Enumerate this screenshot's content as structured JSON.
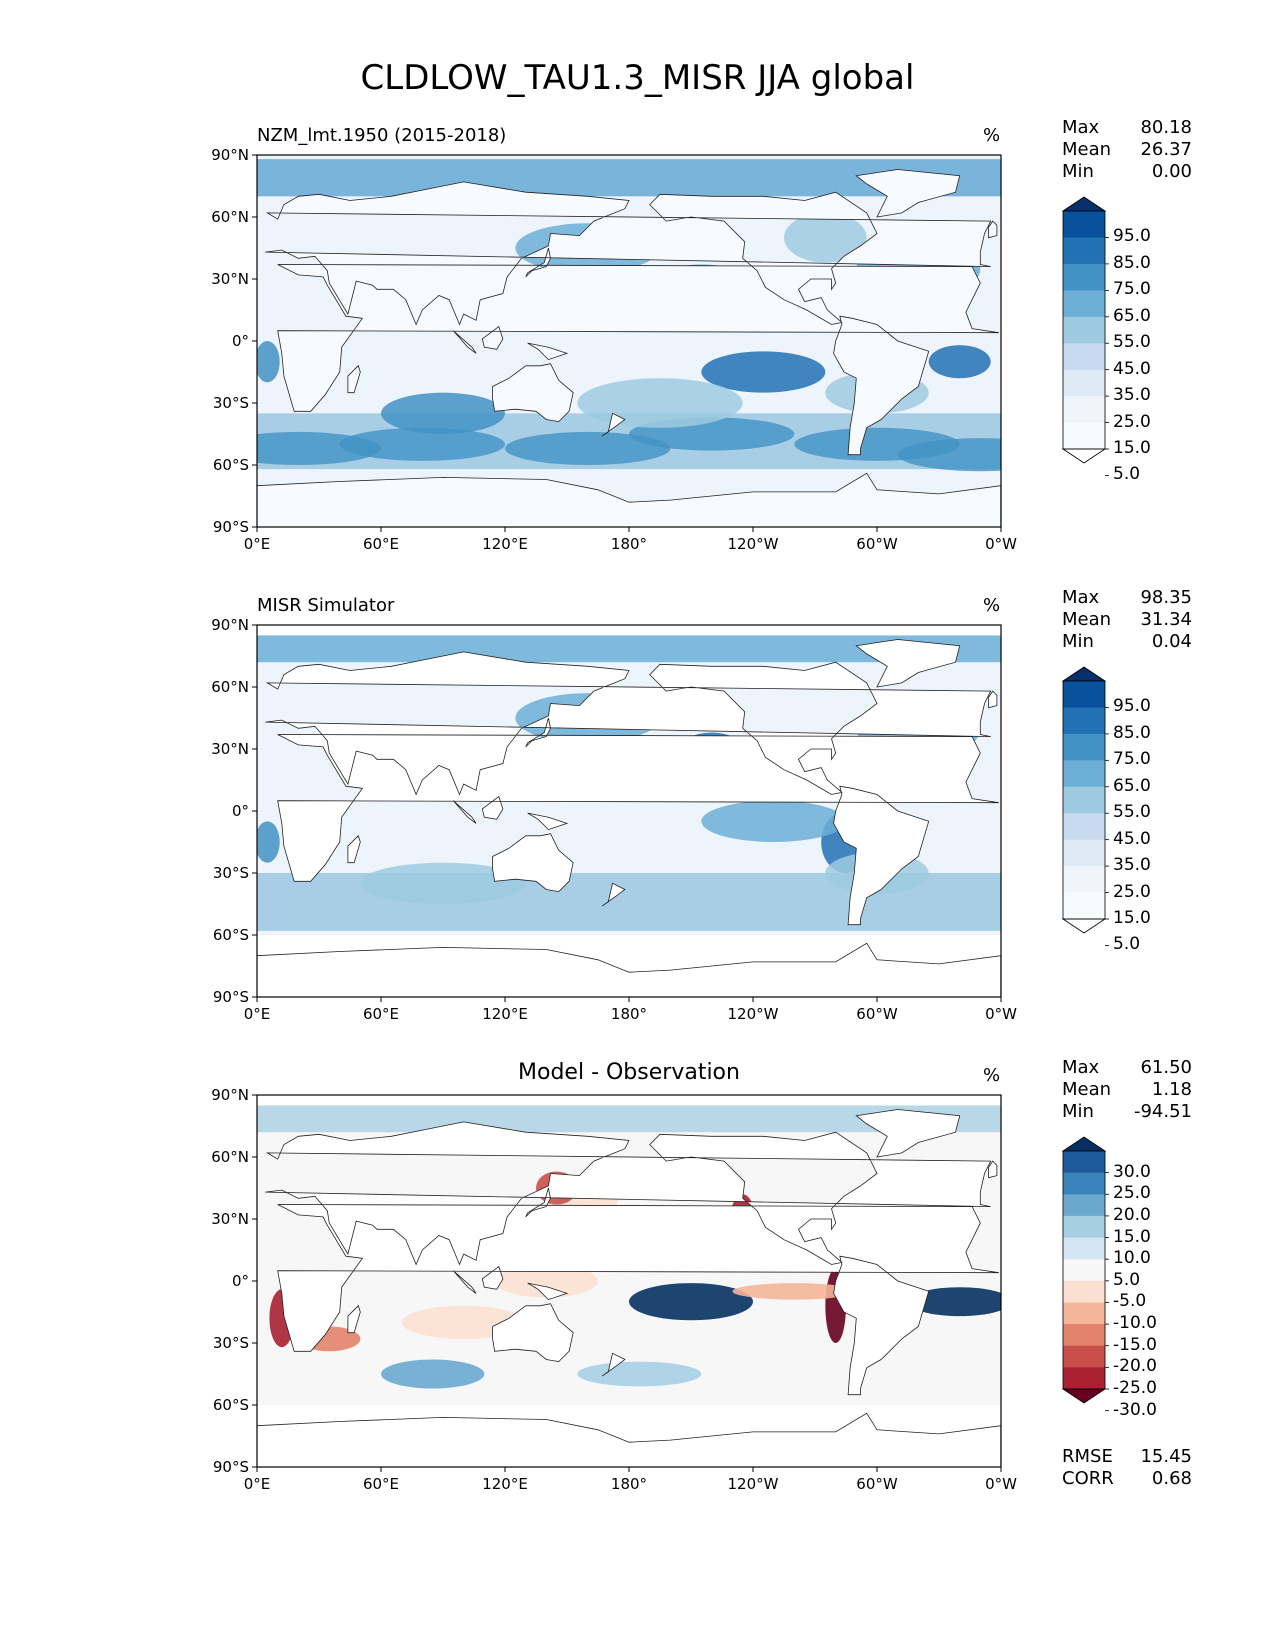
{
  "figure_title": "CLDLOW_TAU1.3_MISR JJA global",
  "panels": [
    {
      "title_left": "NZM_lmt.1950 (2015-2018)",
      "title_center": "",
      "unit": "%",
      "stats": [
        {
          "label": "Max",
          "value": "80.18"
        },
        {
          "label": "Mean",
          "value": "26.37"
        },
        {
          "label": "Min",
          "value": "0.00"
        }
      ],
      "colorbar": {
        "scheme": "blues",
        "labels": [
          "95.0",
          "85.0",
          "75.0",
          "65.0",
          "55.0",
          "45.0",
          "35.0",
          "25.0",
          "15.0",
          "5.0"
        ],
        "colors": [
          "#08306b",
          "#08519c",
          "#2171b5",
          "#4292c6",
          "#6baed6",
          "#9ecae1",
          "#c6dbef",
          "#deebf7",
          "#eff5fb",
          "#f7fbff",
          "#ffffff"
        ]
      }
    },
    {
      "title_left": "MISR Simulator",
      "title_center": "",
      "unit": "%",
      "stats": [
        {
          "label": "Max",
          "value": "98.35"
        },
        {
          "label": "Mean",
          "value": "31.34"
        },
        {
          "label": "Min",
          "value": "0.04"
        }
      ],
      "colorbar": {
        "scheme": "blues",
        "labels": [
          "95.0",
          "85.0",
          "75.0",
          "65.0",
          "55.0",
          "45.0",
          "35.0",
          "25.0",
          "15.0",
          "5.0"
        ],
        "colors": [
          "#08306b",
          "#08519c",
          "#2171b5",
          "#4292c6",
          "#6baed6",
          "#9ecae1",
          "#c6dbef",
          "#deebf7",
          "#eff5fb",
          "#f7fbff",
          "#ffffff"
        ]
      }
    },
    {
      "title_left": "",
      "title_center": "Model - Observation",
      "unit": "%",
      "stats": [
        {
          "label": "Max",
          "value": "61.50"
        },
        {
          "label": "Mean",
          "value": "1.18"
        },
        {
          "label": "Min",
          "value": "-94.51"
        }
      ],
      "metrics": [
        {
          "label": "RMSE",
          "value": "15.45"
        },
        {
          "label": "CORR",
          "value": "0.68"
        }
      ],
      "colorbar": {
        "scheme": "diverging",
        "labels": [
          "30.0",
          "25.0",
          "20.0",
          "15.0",
          "10.0",
          "5.0",
          "-5.0",
          "-10.0",
          "-15.0",
          "-20.0",
          "-25.0",
          "-30.0"
        ],
        "colors": [
          "#053061",
          "#1f5a9a",
          "#3a84bb",
          "#6aa8d0",
          "#a7cfe4",
          "#d4e6f1",
          "#f7f7f7",
          "#fbe0d2",
          "#f4b59a",
          "#e2826a",
          "#c9504a",
          "#a82031",
          "#67001f"
        ]
      }
    }
  ],
  "lat_ticks": [
    "90°N",
    "60°N",
    "30°N",
    "0°",
    "30°S",
    "60°S",
    "90°S"
  ],
  "lon_ticks": [
    "0°E",
    "60°E",
    "120°E",
    "180°",
    "120°W",
    "60°W",
    "0°W"
  ]
}
